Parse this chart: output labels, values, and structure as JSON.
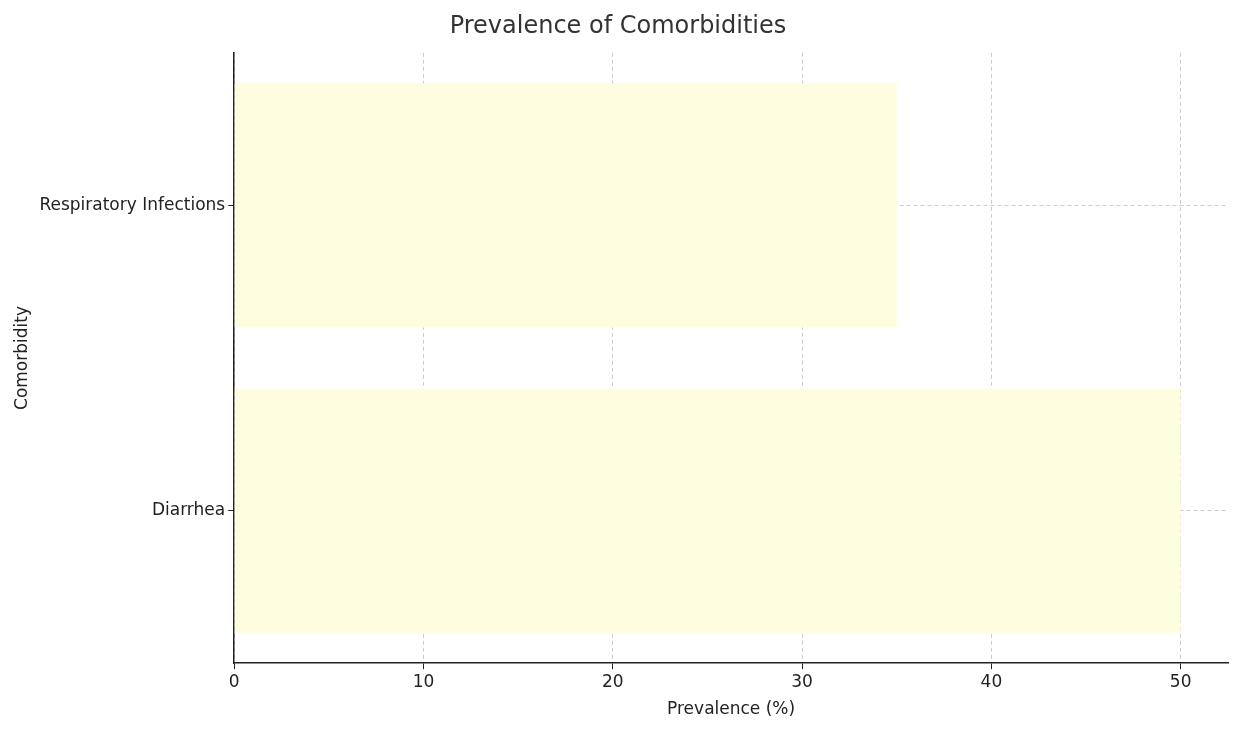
{
  "chart_data": {
    "type": "bar",
    "orientation": "horizontal",
    "title": "Prevalence of Comorbidities",
    "xlabel": "Prevalence (%)",
    "ylabel": "Comorbidity",
    "categories": [
      "Respiratory Infections",
      "Diarrhea"
    ],
    "values": [
      35,
      50
    ],
    "color": "#fffde0",
    "xlim": [
      0,
      52.5
    ],
    "xticks": [
      0,
      10,
      20,
      30,
      40,
      50
    ],
    "grid": true
  }
}
